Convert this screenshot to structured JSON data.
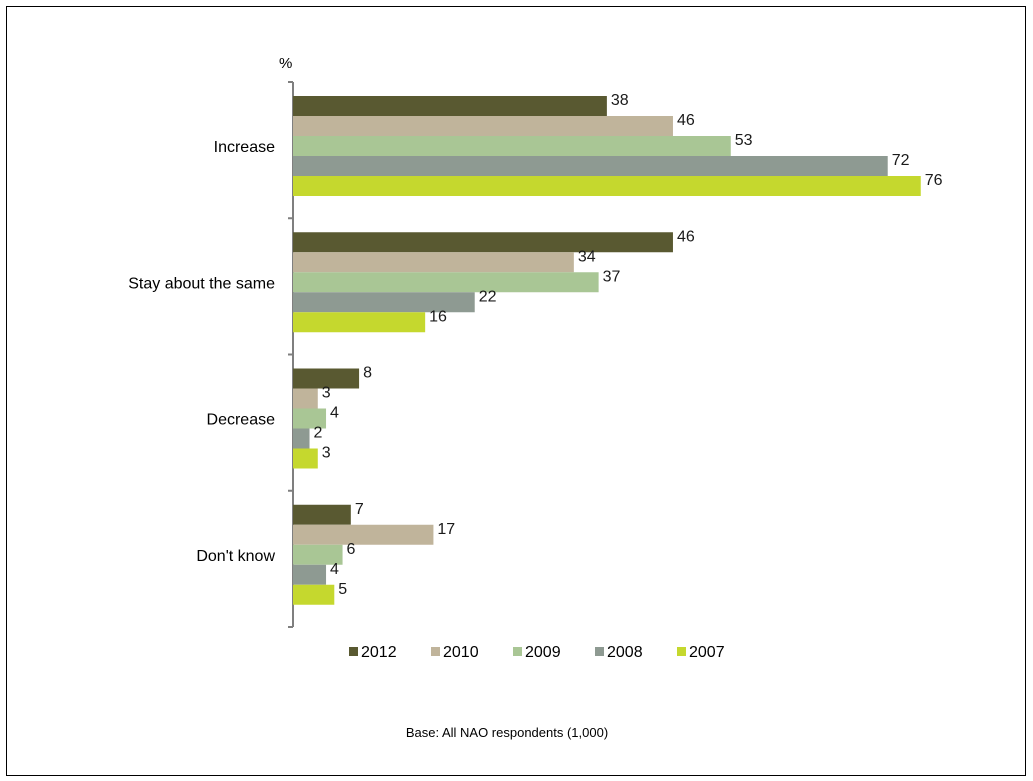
{
  "chart_data": {
    "type": "bar",
    "orientation": "horizontal",
    "unit_label": "%",
    "categories": [
      "Increase",
      "Stay about the same",
      "Decrease",
      "Don't know"
    ],
    "series": [
      {
        "name": "2012",
        "color": "#595931",
        "values": [
          38,
          46,
          8,
          7
        ]
      },
      {
        "name": "2010",
        "color": "#c0b49b",
        "values": [
          46,
          34,
          3,
          17
        ]
      },
      {
        "name": "2009",
        "color": "#a9c695",
        "values": [
          53,
          37,
          4,
          6
        ]
      },
      {
        "name": "2008",
        "color": "#8e9a92",
        "values": [
          72,
          22,
          2,
          4
        ]
      },
      {
        "name": "2007",
        "color": "#c5d82e",
        "values": [
          76,
          16,
          3,
          5
        ]
      }
    ],
    "xlim": [
      0,
      80
    ],
    "grid": false,
    "legend_position": "bottom",
    "footnote": "Base: All NAO respondents (1,000)"
  }
}
